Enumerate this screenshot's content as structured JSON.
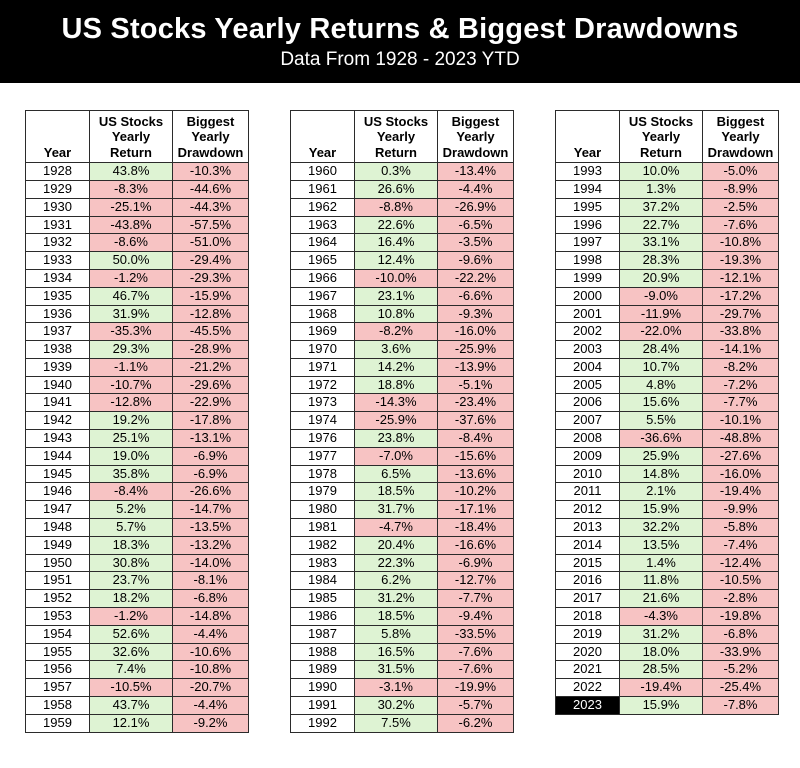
{
  "colors": {
    "band_bg": "#000000",
    "band_fg": "#ffffff",
    "positive_bg": "#def3d3",
    "negative_bg": "#f7c3c3",
    "highlight_bg": "#000000",
    "highlight_fg": "#ffffff",
    "grid": "#2b2b2b"
  },
  "chart_data": {
    "type": "table",
    "title": "US Stocks Yearly Returns & Biggest Drawdowns",
    "subtitle": "Data From 1928 - 2023 YTD",
    "columns": [
      "Year",
      "US Stocks Yearly Return",
      "Biggest Yearly Drawdown"
    ],
    "highlighted_year": "2023",
    "color_rule": "positive values green, negative values pink",
    "tables": [
      {
        "rows": [
          [
            "1928",
            "43.8%",
            "-10.3%"
          ],
          [
            "1929",
            "-8.3%",
            "-44.6%"
          ],
          [
            "1930",
            "-25.1%",
            "-44.3%"
          ],
          [
            "1931",
            "-43.8%",
            "-57.5%"
          ],
          [
            "1932",
            "-8.6%",
            "-51.0%"
          ],
          [
            "1933",
            "50.0%",
            "-29.4%"
          ],
          [
            "1934",
            "-1.2%",
            "-29.3%"
          ],
          [
            "1935",
            "46.7%",
            "-15.9%"
          ],
          [
            "1936",
            "31.9%",
            "-12.8%"
          ],
          [
            "1937",
            "-35.3%",
            "-45.5%"
          ],
          [
            "1938",
            "29.3%",
            "-28.9%"
          ],
          [
            "1939",
            "-1.1%",
            "-21.2%"
          ],
          [
            "1940",
            "-10.7%",
            "-29.6%"
          ],
          [
            "1941",
            "-12.8%",
            "-22.9%"
          ],
          [
            "1942",
            "19.2%",
            "-17.8%"
          ],
          [
            "1943",
            "25.1%",
            "-13.1%"
          ],
          [
            "1944",
            "19.0%",
            "-6.9%"
          ],
          [
            "1945",
            "35.8%",
            "-6.9%"
          ],
          [
            "1946",
            "-8.4%",
            "-26.6%"
          ],
          [
            "1947",
            "5.2%",
            "-14.7%"
          ],
          [
            "1948",
            "5.7%",
            "-13.5%"
          ],
          [
            "1949",
            "18.3%",
            "-13.2%"
          ],
          [
            "1950",
            "30.8%",
            "-14.0%"
          ],
          [
            "1951",
            "23.7%",
            "-8.1%"
          ],
          [
            "1952",
            "18.2%",
            "-6.8%"
          ],
          [
            "1953",
            "-1.2%",
            "-14.8%"
          ],
          [
            "1954",
            "52.6%",
            "-4.4%"
          ],
          [
            "1955",
            "32.6%",
            "-10.6%"
          ],
          [
            "1956",
            "7.4%",
            "-10.8%"
          ],
          [
            "1957",
            "-10.5%",
            "-20.7%"
          ],
          [
            "1958",
            "43.7%",
            "-4.4%"
          ],
          [
            "1959",
            "12.1%",
            "-9.2%"
          ]
        ]
      },
      {
        "rows": [
          [
            "1960",
            "0.3%",
            "-13.4%"
          ],
          [
            "1961",
            "26.6%",
            "-4.4%"
          ],
          [
            "1962",
            "-8.8%",
            "-26.9%"
          ],
          [
            "1963",
            "22.6%",
            "-6.5%"
          ],
          [
            "1964",
            "16.4%",
            "-3.5%"
          ],
          [
            "1965",
            "12.4%",
            "-9.6%"
          ],
          [
            "1966",
            "-10.0%",
            "-22.2%"
          ],
          [
            "1967",
            "23.1%",
            "-6.6%"
          ],
          [
            "1968",
            "10.8%",
            "-9.3%"
          ],
          [
            "1969",
            "-8.2%",
            "-16.0%"
          ],
          [
            "1970",
            "3.6%",
            "-25.9%"
          ],
          [
            "1971",
            "14.2%",
            "-13.9%"
          ],
          [
            "1972",
            "18.8%",
            "-5.1%"
          ],
          [
            "1973",
            "-14.3%",
            "-23.4%"
          ],
          [
            "1974",
            "-25.9%",
            "-37.6%"
          ],
          [
            "1976",
            "23.8%",
            "-8.4%"
          ],
          [
            "1977",
            "-7.0%",
            "-15.6%"
          ],
          [
            "1978",
            "6.5%",
            "-13.6%"
          ],
          [
            "1979",
            "18.5%",
            "-10.2%"
          ],
          [
            "1980",
            "31.7%",
            "-17.1%"
          ],
          [
            "1981",
            "-4.7%",
            "-18.4%"
          ],
          [
            "1982",
            "20.4%",
            "-16.6%"
          ],
          [
            "1983",
            "22.3%",
            "-6.9%"
          ],
          [
            "1984",
            "6.2%",
            "-12.7%"
          ],
          [
            "1985",
            "31.2%",
            "-7.7%"
          ],
          [
            "1986",
            "18.5%",
            "-9.4%"
          ],
          [
            "1987",
            "5.8%",
            "-33.5%"
          ],
          [
            "1988",
            "16.5%",
            "-7.6%"
          ],
          [
            "1989",
            "31.5%",
            "-7.6%"
          ],
          [
            "1990",
            "-3.1%",
            "-19.9%"
          ],
          [
            "1991",
            "30.2%",
            "-5.7%"
          ],
          [
            "1992",
            "7.5%",
            "-6.2%"
          ]
        ]
      },
      {
        "rows": [
          [
            "1993",
            "10.0%",
            "-5.0%"
          ],
          [
            "1994",
            "1.3%",
            "-8.9%"
          ],
          [
            "1995",
            "37.2%",
            "-2.5%"
          ],
          [
            "1996",
            "22.7%",
            "-7.6%"
          ],
          [
            "1997",
            "33.1%",
            "-10.8%"
          ],
          [
            "1998",
            "28.3%",
            "-19.3%"
          ],
          [
            "1999",
            "20.9%",
            "-12.1%"
          ],
          [
            "2000",
            "-9.0%",
            "-17.2%"
          ],
          [
            "2001",
            "-11.9%",
            "-29.7%"
          ],
          [
            "2002",
            "-22.0%",
            "-33.8%"
          ],
          [
            "2003",
            "28.4%",
            "-14.1%"
          ],
          [
            "2004",
            "10.7%",
            "-8.2%"
          ],
          [
            "2005",
            "4.8%",
            "-7.2%"
          ],
          [
            "2006",
            "15.6%",
            "-7.7%"
          ],
          [
            "2007",
            "5.5%",
            "-10.1%"
          ],
          [
            "2008",
            "-36.6%",
            "-48.8%"
          ],
          [
            "2009",
            "25.9%",
            "-27.6%"
          ],
          [
            "2010",
            "14.8%",
            "-16.0%"
          ],
          [
            "2011",
            "2.1%",
            "-19.4%"
          ],
          [
            "2012",
            "15.9%",
            "-9.9%"
          ],
          [
            "2013",
            "32.2%",
            "-5.8%"
          ],
          [
            "2014",
            "13.5%",
            "-7.4%"
          ],
          [
            "2015",
            "1.4%",
            "-12.4%"
          ],
          [
            "2016",
            "11.8%",
            "-10.5%"
          ],
          [
            "2017",
            "21.6%",
            "-2.8%"
          ],
          [
            "2018",
            "-4.3%",
            "-19.8%"
          ],
          [
            "2019",
            "31.2%",
            "-6.8%"
          ],
          [
            "2020",
            "18.0%",
            "-33.9%"
          ],
          [
            "2021",
            "28.5%",
            "-5.2%"
          ],
          [
            "2022",
            "-19.4%",
            "-25.4%"
          ],
          [
            "2023",
            "15.9%",
            "-7.8%"
          ]
        ]
      }
    ]
  }
}
